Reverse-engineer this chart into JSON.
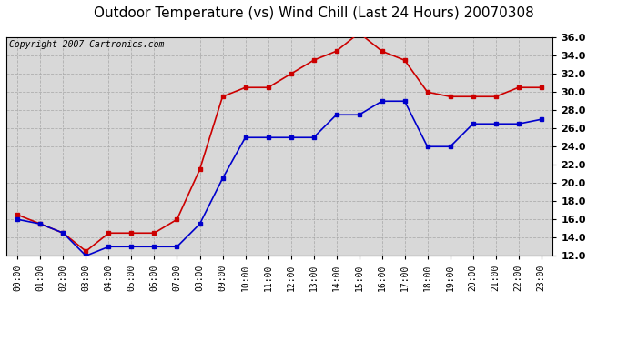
{
  "title": "Outdoor Temperature (vs) Wind Chill (Last 24 Hours) 20070308",
  "copyright": "Copyright 2007 Cartronics.com",
  "hours": [
    "00:00",
    "01:00",
    "02:00",
    "03:00",
    "04:00",
    "05:00",
    "06:00",
    "07:00",
    "08:00",
    "09:00",
    "10:00",
    "11:00",
    "12:00",
    "13:00",
    "14:00",
    "15:00",
    "16:00",
    "17:00",
    "18:00",
    "19:00",
    "20:00",
    "21:00",
    "22:00",
    "23:00"
  ],
  "temp": [
    16.0,
    15.5,
    14.5,
    12.0,
    13.0,
    13.0,
    13.0,
    13.0,
    15.5,
    20.5,
    25.0,
    25.0,
    25.0,
    25.0,
    27.5,
    27.5,
    29.0,
    29.0,
    24.0,
    24.0,
    26.5,
    26.5,
    26.5,
    27.0
  ],
  "wind_chill": [
    16.5,
    15.5,
    14.5,
    12.5,
    14.5,
    14.5,
    14.5,
    16.0,
    21.5,
    29.5,
    30.5,
    30.5,
    32.0,
    33.5,
    34.5,
    36.5,
    34.5,
    33.5,
    30.0,
    29.5,
    29.5,
    29.5,
    30.5,
    30.5
  ],
  "temp_color": "#0000cc",
  "wc_color": "#cc0000",
  "bg_color": "#ffffff",
  "plot_bg": "#d8d8d8",
  "grid_color": "#aaaaaa",
  "ylim_min": 12.0,
  "ylim_max": 36.0,
  "ytick_step": 2.0,
  "title_fontsize": 11,
  "copyright_fontsize": 7,
  "marker": "s",
  "marker_size": 3,
  "linewidth": 1.2
}
